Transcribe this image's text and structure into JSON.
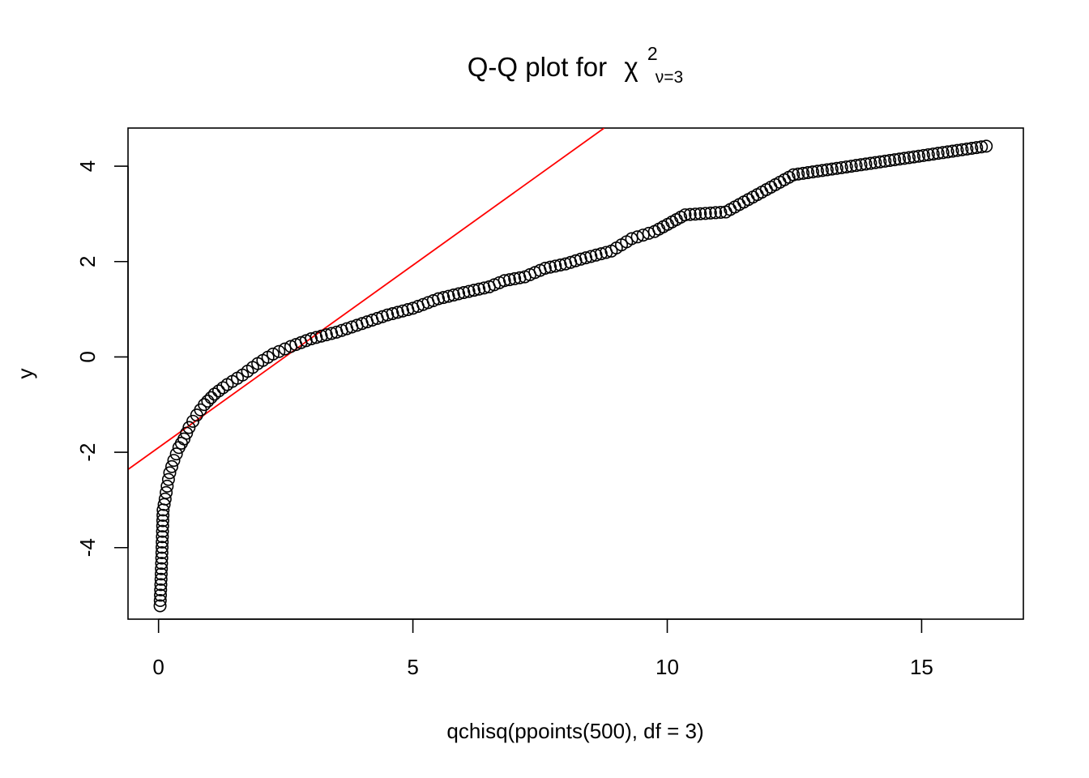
{
  "chart_data": {
    "type": "scatter",
    "title": {
      "main": "Q-Q plot for",
      "symbol": "χ",
      "superscript": "2",
      "subscript": "ν=3"
    },
    "xlabel": "qchisq(ppoints(500), df = 3)",
    "ylabel": "y",
    "xlim": [
      -0.6,
      17.0
    ],
    "ylim": [
      -5.5,
      4.8
    ],
    "xticks": [
      0,
      5,
      10,
      15
    ],
    "yticks": [
      -4,
      -2,
      0,
      2,
      4
    ],
    "xtick_labels": [
      "0",
      "5",
      "10",
      "15"
    ],
    "ytick_labels": [
      "-4",
      "-2",
      "0",
      "2",
      "4"
    ],
    "grid": false,
    "legend": "none",
    "reference_line": {
      "color": "#ff0000",
      "points": [
        [
          -0.6,
          -2.36
        ],
        [
          8.76,
          4.8
        ]
      ]
    },
    "series": [
      {
        "marker": "open-circle",
        "color": "#000000",
        "anchors": [
          [
            0.03,
            -5.22
          ],
          [
            0.06,
            -4.33
          ],
          [
            0.09,
            -3.21
          ],
          [
            0.13,
            -2.98
          ],
          [
            0.17,
            -2.71
          ],
          [
            0.22,
            -2.43
          ],
          [
            0.3,
            -2.17
          ],
          [
            0.4,
            -1.9
          ],
          [
            0.5,
            -1.72
          ],
          [
            0.6,
            -1.48
          ],
          [
            0.75,
            -1.22
          ],
          [
            0.9,
            -1.0
          ],
          [
            1.1,
            -0.78
          ],
          [
            1.35,
            -0.58
          ],
          [
            1.65,
            -0.38
          ],
          [
            1.95,
            -0.14
          ],
          [
            2.25,
            0.06
          ],
          [
            2.6,
            0.22
          ],
          [
            3.0,
            0.38
          ],
          [
            3.5,
            0.52
          ],
          [
            4.0,
            0.7
          ],
          [
            4.5,
            0.88
          ],
          [
            5.0,
            1.02
          ],
          [
            5.5,
            1.22
          ],
          [
            6.0,
            1.35
          ],
          [
            6.5,
            1.47
          ],
          [
            6.8,
            1.6
          ],
          [
            7.2,
            1.68
          ],
          [
            7.6,
            1.86
          ],
          [
            8.0,
            1.95
          ],
          [
            8.3,
            2.05
          ],
          [
            8.9,
            2.22
          ],
          [
            9.3,
            2.48
          ],
          [
            9.75,
            2.63
          ],
          [
            10.35,
            2.98
          ],
          [
            11.15,
            3.04
          ],
          [
            12.48,
            3.82
          ],
          [
            16.27,
            4.42
          ]
        ]
      }
    ]
  }
}
